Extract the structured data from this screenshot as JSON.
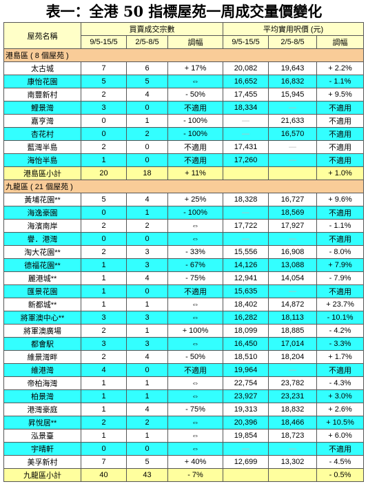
{
  "title": "表一：全港 50 指標屋苑一周成交量價變化",
  "header": {
    "name": "屋苑名稱",
    "tx_group": "買賣成交宗數",
    "price_group": "平均實用呎價 (元)",
    "sub": [
      "9/5-15/5",
      "2/5-8/5",
      "調幅",
      "9/5-15/5",
      "2/5-8/5",
      "調幅"
    ]
  },
  "sections": [
    {
      "title": "港島區 ( 8 個屋苑 )",
      "rows": [
        [
          "太古城",
          "7",
          "6",
          "+ 17%",
          "20,082",
          "19,643",
          "+ 2.2%"
        ],
        [
          "康怡花園",
          "5",
          "5",
          "⇔",
          "16,652",
          "16,832",
          "- 1.1%"
        ],
        [
          "南豐新村",
          "2",
          "4",
          "- 50%",
          "17,455",
          "15,945",
          "+ 9.5%"
        ],
        [
          "鯉景灣",
          "3",
          "0",
          "不適用",
          "18,334",
          "—",
          "不適用"
        ],
        [
          "嘉亨灣",
          "0",
          "1",
          "- 100%",
          "—",
          "21,633",
          "不適用"
        ],
        [
          "杏花村",
          "0",
          "2",
          "- 100%",
          "—",
          "16,570",
          "不適用"
        ],
        [
          "藍灣半島",
          "2",
          "0",
          "不適用",
          "17,431",
          "—",
          "不適用"
        ],
        [
          "海怡半島",
          "1",
          "0",
          "不適用",
          "17,260",
          "—",
          "不適用"
        ]
      ],
      "subtotal": {
        "name": "港島區小計",
        "this_week": "20",
        "last_week": "18",
        "tx_change": "+ 11%",
        "price_change": "+ 1.0%"
      }
    },
    {
      "title": "九龍區 ( 21 個屋苑 )",
      "rows": [
        [
          "黃埔花園**",
          "5",
          "4",
          "+ 25%",
          "18,328",
          "16,727",
          "+ 9.6%"
        ],
        [
          "海逸豪園",
          "0",
          "1",
          "- 100%",
          "—",
          "18,569",
          "不適用"
        ],
        [
          "海濱南岸",
          "2",
          "2",
          "⇔",
          "17,722",
          "17,927",
          "- 1.1%"
        ],
        [
          "譽．港灣",
          "0",
          "0",
          "⇔",
          "—",
          "—",
          "不適用"
        ],
        [
          "淘大花園**",
          "2",
          "3",
          "- 33%",
          "15,556",
          "16,908",
          "- 8.0%"
        ],
        [
          "德福花園**",
          "1",
          "3",
          "- 67%",
          "14,126",
          "13,088",
          "+ 7.9%"
        ],
        [
          "麗港城**",
          "1",
          "4",
          "- 75%",
          "12,941",
          "14,054",
          "- 7.9%"
        ],
        [
          "匯景花園",
          "1",
          "0",
          "不適用",
          "15,635",
          "—",
          "不適用"
        ],
        [
          "新都城**",
          "1",
          "1",
          "⇔",
          "18,402",
          "14,872",
          "+ 23.7%"
        ],
        [
          "將軍澳中心**",
          "3",
          "3",
          "⇔",
          "16,282",
          "18,113",
          "- 10.1%"
        ],
        [
          "將軍澳廣場",
          "2",
          "1",
          "+ 100%",
          "18,099",
          "18,885",
          "- 4.2%"
        ],
        [
          "都會駅",
          "3",
          "3",
          "⇔",
          "16,450",
          "17,014",
          "- 3.3%"
        ],
        [
          "維景灣畔",
          "2",
          "4",
          "- 50%",
          "18,510",
          "18,204",
          "+ 1.7%"
        ],
        [
          "維港灣",
          "4",
          "0",
          "不適用",
          "19,964",
          "—",
          "不適用"
        ],
        [
          "帝柏海灣",
          "1",
          "1",
          "⇔",
          "22,754",
          "23,782",
          "- 4.3%"
        ],
        [
          "柏景灣",
          "1",
          "1",
          "⇔",
          "23,927",
          "23,231",
          "+ 3.0%"
        ],
        [
          "港灣豪庭",
          "1",
          "4",
          "- 75%",
          "19,313",
          "18,832",
          "+ 2.6%"
        ],
        [
          "昇悅居**",
          "2",
          "2",
          "⇔",
          "20,396",
          "18,466",
          "+ 10.5%"
        ],
        [
          "泓景臺",
          "1",
          "1",
          "⇔",
          "19,854",
          "18,723",
          "+ 6.0%"
        ],
        [
          "宇晴軒",
          "0",
          "0",
          "⇔",
          "—",
          "—",
          "不適用"
        ],
        [
          "美孚新村",
          "7",
          "5",
          "+ 40%",
          "12,699",
          "13,302",
          "- 4.5%"
        ]
      ],
      "subtotal": {
        "name": "九龍區小計",
        "this_week": "40",
        "last_week": "43",
        "tx_change": "- 7%",
        "price_change": "- 0.5%"
      }
    }
  ]
}
